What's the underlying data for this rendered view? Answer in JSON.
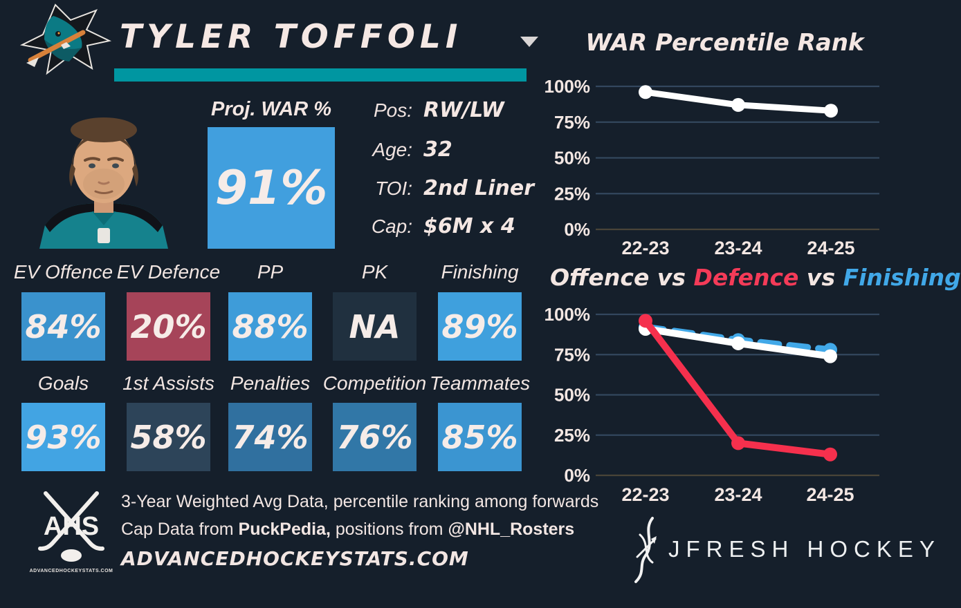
{
  "page": {
    "background": "#151f2b",
    "accent_teal": "#0096a1",
    "cream": "#f4e7e3"
  },
  "header": {
    "player_name": "TYLER TOFFOLI",
    "team_logo": "san-jose-sharks",
    "dropdown_icon": "caret-down"
  },
  "proj_war": {
    "label": "Proj. WAR %",
    "value": "91%",
    "box_color": "#419fde"
  },
  "bio": {
    "rows": [
      {
        "label": "Pos:",
        "value": "RW/LW"
      },
      {
        "label": "Age:",
        "value": "32"
      },
      {
        "label": "TOI:",
        "value": "2nd Liner"
      },
      {
        "label": "Cap:",
        "value": "$6M x 4"
      }
    ]
  },
  "stats": {
    "row1": [
      {
        "label": "EV Offence",
        "value": "84%",
        "color": "#3a92cd"
      },
      {
        "label": "EV Defence",
        "value": "20%",
        "color": "#a64459"
      },
      {
        "label": "PP",
        "value": "88%",
        "color": "#3e9cd9"
      },
      {
        "label": "PK",
        "value": "NA",
        "color": "#20303f"
      },
      {
        "label": "Finishing",
        "value": "89%",
        "color": "#3fa0dd"
      }
    ],
    "row2": [
      {
        "label": "Goals",
        "value": "93%",
        "color": "#42a4e3"
      },
      {
        "label": "1st Assists",
        "value": "58%",
        "color": "#2d4459"
      },
      {
        "label": "Penalties",
        "value": "74%",
        "color": "#30709f"
      },
      {
        "label": "Competition",
        "value": "76%",
        "color": "#3177a7"
      },
      {
        "label": "Teammates",
        "value": "85%",
        "color": "#3b95d1"
      }
    ]
  },
  "footnote": {
    "line1": "3-Year Weighted Avg Data, percentile ranking among forwards",
    "line2_prefix": "Cap Data from ",
    "line2_bold1": "PuckPedia,",
    "line2_mid": " positions from ",
    "line2_bold2": "@NHL_Rosters",
    "line3": "ADVANCEDHOCKEYSTATS.COM"
  },
  "ahs_logo": {
    "monogram": "AHS",
    "caption": "ADVANCEDHOCKEYSTATS.COM"
  },
  "jfresh": {
    "wordmark": "JFRESH HOCKEY"
  },
  "chart_data": [
    {
      "type": "line",
      "title": "WAR Percentile Rank",
      "categories": [
        "22-23",
        "23-24",
        "24-25"
      ],
      "ylim": [
        0,
        100
      ],
      "yticks": [
        100,
        75,
        50,
        25,
        0
      ],
      "ytick_labels": [
        "100%",
        "75%",
        "50%",
        "25%",
        "0%"
      ],
      "grid": true,
      "legend": "none",
      "grid_color": "#33475e",
      "zero_line_color": "#4a4438",
      "label_color": "#f3e7e3",
      "series": [
        {
          "name": "WAR Percentile",
          "color": "#ffffff",
          "dashed": false,
          "values": [
            96,
            87,
            83
          ]
        }
      ]
    },
    {
      "type": "line",
      "title_parts": [
        {
          "text": "Offence",
          "color": "#f3e6e2"
        },
        {
          "text": " vs ",
          "color": "#f3e6e2"
        },
        {
          "text": "Defence",
          "color": "#f43b58"
        },
        {
          "text": " vs ",
          "color": "#f3e6e2"
        },
        {
          "text": "Finishing",
          "color": "#41a8e8"
        }
      ],
      "categories": [
        "22-23",
        "23-24",
        "24-25"
      ],
      "ylim": [
        0,
        100
      ],
      "yticks": [
        100,
        75,
        50,
        25,
        0
      ],
      "ytick_labels": [
        "100%",
        "75%",
        "50%",
        "25%",
        "0%"
      ],
      "grid": true,
      "legend": "in-title",
      "grid_color": "#33475e",
      "zero_line_color": "#4a4438",
      "label_color": "#f3e7e3",
      "series": [
        {
          "name": "Finishing",
          "color": "#41a8e8",
          "dashed": true,
          "values": [
            92,
            84,
            78
          ]
        },
        {
          "name": "Offence",
          "color": "#ffffff",
          "dashed": false,
          "values": [
            91,
            82,
            74
          ]
        },
        {
          "name": "Defence",
          "color": "#f5304d",
          "dashed": false,
          "values": [
            96,
            20,
            13
          ]
        }
      ]
    }
  ]
}
